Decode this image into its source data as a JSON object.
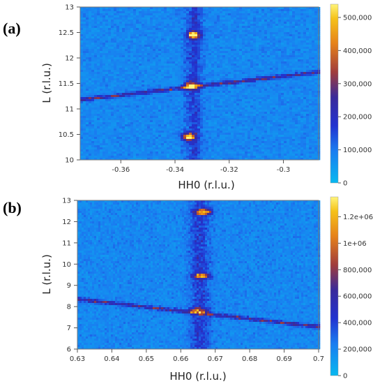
{
  "chart_data": [
    {
      "type": "heatmap",
      "panel_label": "(a)",
      "xlabel": "HH0 (r.l.u.)",
      "ylabel": "L (r.l.u.)",
      "xlim": [
        -0.375,
        -0.287
      ],
      "ylim": [
        10,
        13
      ],
      "xticks": [
        -0.36,
        -0.34,
        -0.32,
        -0.3
      ],
      "xtick_labels": [
        "-0.36",
        "-0.34",
        "-0.32",
        "-0.3"
      ],
      "yticks": [
        10,
        10.5,
        11,
        11.5,
        12,
        12.5,
        13
      ],
      "ytick_labels": [
        "10",
        "10.5",
        "11",
        "11.5",
        "12",
        "12.5",
        "13"
      ],
      "colorbar": {
        "range": [
          0,
          540000
        ],
        "ticks": [
          0,
          100000,
          200000,
          300000,
          400000,
          500000
        ],
        "tick_labels": [
          "0",
          "100,000",
          "200,000",
          "300,000",
          "400,000",
          "500,000"
        ]
      },
      "features": {
        "bragg_peaks": [
          {
            "x": -0.333,
            "y": 12.45,
            "intensity": 480000
          },
          {
            "x": -0.334,
            "y": 11.45,
            "intensity": 420000
          },
          {
            "x": -0.335,
            "y": 10.45,
            "intensity": 500000
          }
        ],
        "rod_x": -0.333,
        "streak": {
          "x0": -0.375,
          "y0": 11.18,
          "x1": -0.287,
          "y1": 11.72,
          "intensity": 200000
        },
        "background": 80000
      }
    },
    {
      "type": "heatmap",
      "panel_label": "(b)",
      "xlabel": "HH0 (r.l.u.)",
      "ylabel": "L (r.l.u.)",
      "xlim": [
        0.63,
        0.7
      ],
      "ylim": [
        6,
        13
      ],
      "xticks": [
        0.63,
        0.64,
        0.65,
        0.66,
        0.67,
        0.68,
        0.69,
        0.7
      ],
      "xtick_labels": [
        "0.63",
        "0.64",
        "0.65",
        "0.66",
        "0.67",
        "0.68",
        "0.69",
        "0.7"
      ],
      "yticks": [
        6,
        7,
        8,
        9,
        10,
        11,
        12,
        13
      ],
      "ytick_labels": [
        "6",
        "7",
        "8",
        "9",
        "10",
        "11",
        "12",
        "13"
      ],
      "colorbar": {
        "range": [
          0,
          1350000
        ],
        "ticks": [
          0,
          200000,
          400000,
          600000,
          800000,
          1000000,
          1200000
        ],
        "tick_labels": [
          "0",
          "200,000",
          "400,000",
          "600,000",
          "800,000",
          "1e+06",
          "1.2e+06"
        ]
      },
      "features": {
        "bragg_peaks": [
          {
            "x": 0.6665,
            "y": 12.45,
            "intensity": 1250000
          },
          {
            "x": 0.666,
            "y": 9.45,
            "intensity": 900000
          },
          {
            "x": 0.665,
            "y": 7.8,
            "intensity": 700000
          }
        ],
        "rod_x": 0.6655,
        "streak": {
          "x0": 0.63,
          "y0": 8.35,
          "x1": 0.7,
          "y1": 7.05,
          "intensity": 500000
        },
        "background": 200000
      }
    }
  ]
}
